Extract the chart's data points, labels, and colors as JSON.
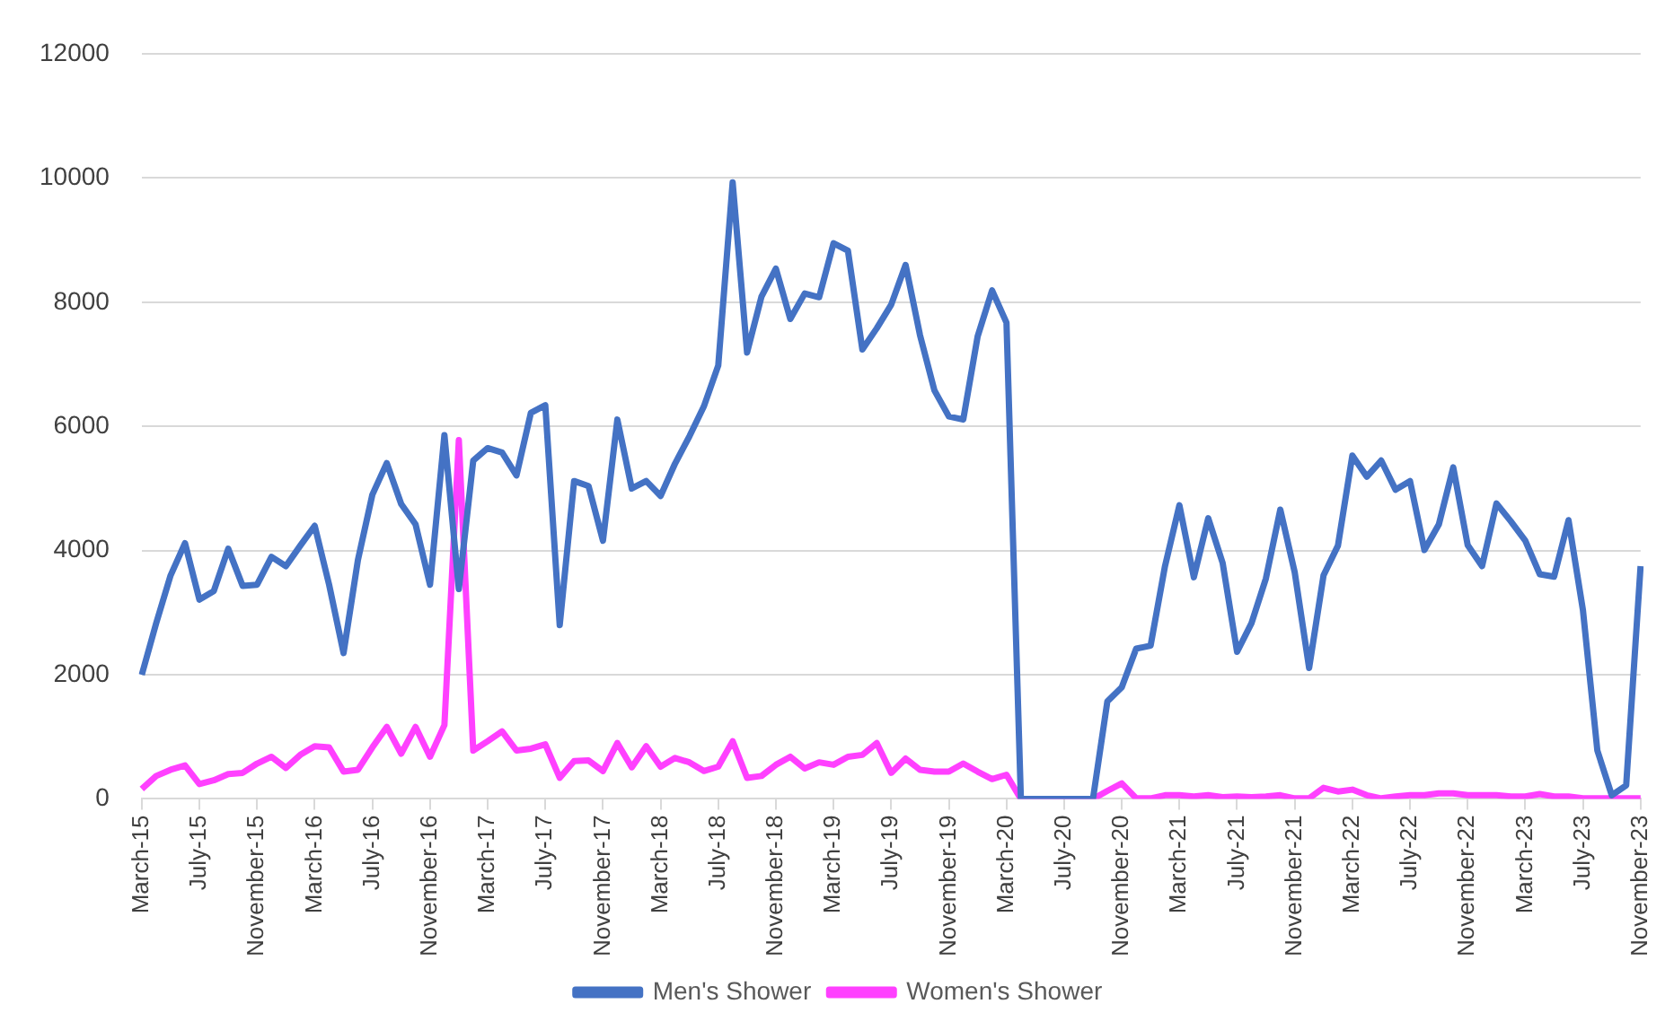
{
  "chart_data": {
    "type": "line",
    "categories": [
      "March-15",
      null,
      null,
      null,
      "July-15",
      null,
      null,
      null,
      "November-15",
      null,
      null,
      null,
      "March-16",
      null,
      null,
      null,
      "July-16",
      null,
      null,
      null,
      "November-16",
      null,
      null,
      null,
      "March-17",
      null,
      null,
      null,
      "July-17",
      null,
      null,
      null,
      "November-17",
      null,
      null,
      null,
      "March-18",
      null,
      null,
      null,
      "July-18",
      null,
      null,
      null,
      "November-18",
      null,
      null,
      null,
      "March-19",
      null,
      null,
      null,
      "July-19",
      null,
      null,
      null,
      "November-19",
      null,
      null,
      null,
      "March-20",
      null,
      null,
      null,
      "July-20",
      null,
      null,
      null,
      "November-20",
      null,
      null,
      null,
      "March-21",
      null,
      null,
      null,
      "July-21",
      null,
      null,
      null,
      "November-21",
      null,
      null,
      null,
      "March-22",
      null,
      null,
      null,
      "July-22",
      null,
      null,
      null,
      "November-22",
      null,
      null,
      null,
      "March-23",
      null,
      null,
      null,
      "July-23",
      null,
      null,
      null,
      "November-23"
    ],
    "series": [
      {
        "name": "Men's Shower",
        "color": "#4472c4",
        "values": [
          2000,
          2830,
          3600,
          4120,
          3210,
          3350,
          4030,
          3430,
          3450,
          3900,
          3750,
          4080,
          4400,
          3450,
          2350,
          3850,
          4900,
          5410,
          4750,
          4420,
          3450,
          5860,
          3380,
          5450,
          5650,
          5580,
          5210,
          6220,
          6340,
          2800,
          5120,
          5040,
          4160,
          6110,
          5000,
          5120,
          4880,
          5400,
          5840,
          6320,
          6980,
          9930,
          7190,
          8090,
          8540,
          7730,
          8140,
          8080,
          8950,
          8830,
          7240,
          7580,
          7960,
          8600,
          7470,
          6580,
          6160,
          6110,
          7450,
          8190,
          7670,
          0,
          0,
          0,
          0,
          0,
          0,
          1570,
          1800,
          2420,
          2470,
          3750,
          4730,
          3570,
          4520,
          3800,
          2370,
          2830,
          3550,
          4660,
          3650,
          2110,
          3600,
          4080,
          5530,
          5190,
          5450,
          4980,
          5120,
          4010,
          4420,
          5340,
          4090,
          3750,
          4760,
          4470,
          4160,
          3620,
          3580,
          4490,
          3040,
          780,
          60,
          220,
          3750
        ]
      },
      {
        "name": "Women's Shower",
        "color": "#ff40ff",
        "values": [
          160,
          370,
          470,
          540,
          240,
          300,
          400,
          420,
          570,
          680,
          500,
          710,
          850,
          830,
          440,
          470,
          830,
          1160,
          730,
          1160,
          680,
          1190,
          5780,
          780,
          930,
          1090,
          780,
          810,
          880,
          340,
          610,
          620,
          450,
          900,
          510,
          850,
          520,
          660,
          590,
          450,
          520,
          930,
          340,
          370,
          550,
          680,
          490,
          590,
          550,
          680,
          710,
          900,
          420,
          650,
          470,
          440,
          440,
          570,
          440,
          320,
          390,
          0,
          0,
          0,
          0,
          0,
          0,
          130,
          250,
          10,
          10,
          60,
          60,
          40,
          60,
          30,
          40,
          30,
          40,
          60,
          10,
          10,
          180,
          120,
          150,
          60,
          10,
          40,
          60,
          60,
          90,
          90,
          60,
          60,
          60,
          40,
          40,
          80,
          40,
          40,
          10,
          10,
          10,
          10,
          10
        ]
      }
    ],
    "ylim": [
      0,
      12000
    ],
    "yticks": [
      0,
      2000,
      4000,
      6000,
      8000,
      10000,
      12000
    ],
    "grid": "y",
    "legend": "bottom",
    "marker": "none",
    "line_style": "solid"
  }
}
